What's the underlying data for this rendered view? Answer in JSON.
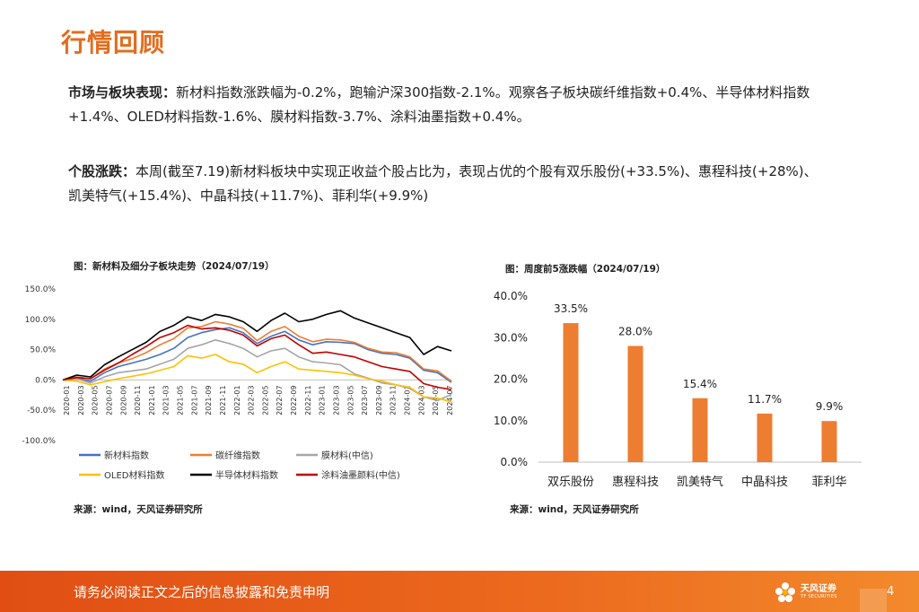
{
  "page_title": "行情回顾",
  "paragraph1": {
    "label": "市场与板块表现：",
    "line1": "新材料指数涨跌幅为-0.2%，跑输沪深300指数-2.1%。观察各子板块碳纤维指数+0.4%、半导体材料指数",
    "line2": "+1.4%、OLED材料指数-1.6%、膜材料指数-3.7%、涂料油墨指数+0.4%。"
  },
  "paragraph2": {
    "label": "个股涨跌：",
    "line1": "本周(截至7.19)新材料板块中实现正收益个股占比为，表现占优的个股有双乐股份(+33.5%)、惠程科技(+28%)、",
    "line2": "凯美特气(+15.4%)、中晶科技(+11.7%)、菲利华(+9.9%)"
  },
  "left_chart": {
    "title": "图：新材料及细分子板块走势（2024/07/19）",
    "source": "来源：wind，天风证券研究所"
  },
  "right_chart": {
    "title": "图：周度前5涨跌幅（2024/07/19）",
    "source": "来源：wind，天风证券研究所"
  },
  "chart_data": [
    {
      "type": "line",
      "y_tick_labels": [
        "150.0%",
        "100.0%",
        "50.0%",
        "0.0%",
        "-50.0%",
        "-100.0%"
      ],
      "ylim": [
        -100,
        150
      ],
      "x_tick_labels": [
        "2020-01",
        "2020-03",
        "2020-05",
        "2020-07",
        "2020-09",
        "2020-11",
        "2021-01",
        "2021-03",
        "2021-05",
        "2021-07",
        "2021-09",
        "2021-11",
        "2022-01",
        "2022-03",
        "2022-05",
        "2022-07",
        "2022-09",
        "2022-11",
        "2023-01",
        "2023-03",
        "2023-05",
        "2023-07",
        "2023-09",
        "2023-11",
        "2024-01",
        "2024-03",
        "2024-05",
        "2024-07"
      ],
      "legend_position": "bottom",
      "series": [
        {
          "name": "新材料指数",
          "color": "#4472C4",
          "values": [
            0,
            3,
            -2,
            12,
            22,
            28,
            34,
            42,
            52,
            70,
            78,
            83,
            86,
            78,
            60,
            72,
            80,
            66,
            58,
            63,
            62,
            60,
            50,
            44,
            42,
            36,
            16,
            12,
            -4
          ]
        },
        {
          "name": "碳纤维指数",
          "color": "#ED7D31",
          "values": [
            0,
            5,
            2,
            18,
            28,
            35,
            45,
            58,
            68,
            86,
            88,
            96,
            92,
            85,
            65,
            80,
            88,
            72,
            63,
            67,
            66,
            62,
            52,
            46,
            45,
            38,
            18,
            15,
            -2
          ]
        },
        {
          "name": "膜材料(中信)",
          "color": "#A5A5A5",
          "values": [
            0,
            2,
            -5,
            5,
            12,
            15,
            18,
            26,
            34,
            52,
            58,
            66,
            60,
            52,
            38,
            48,
            52,
            38,
            30,
            28,
            25,
            10,
            3,
            -5,
            -8,
            -14,
            -28,
            -34,
            -24
          ]
        },
        {
          "name": "OLED材料指数",
          "color": "#FFC000",
          "values": [
            0,
            -2,
            -8,
            -3,
            2,
            6,
            10,
            16,
            22,
            40,
            36,
            42,
            30,
            26,
            12,
            22,
            30,
            18,
            16,
            14,
            12,
            8,
            2,
            -2,
            -8,
            -12,
            -28,
            -30,
            -36
          ]
        },
        {
          "name": "半导体材料指数",
          "color": "#000000",
          "values": [
            0,
            8,
            5,
            25,
            38,
            50,
            62,
            80,
            90,
            104,
            98,
            108,
            104,
            96,
            80,
            98,
            110,
            96,
            100,
            108,
            114,
            102,
            94,
            86,
            78,
            70,
            42,
            55,
            48
          ]
        },
        {
          "name": "涂料油墨颜料(中信)",
          "color": "#C00000",
          "values": [
            0,
            4,
            2,
            16,
            28,
            42,
            55,
            70,
            78,
            90,
            84,
            86,
            82,
            74,
            56,
            68,
            74,
            58,
            44,
            46,
            42,
            38,
            30,
            22,
            18,
            14,
            -6,
            -12,
            -16
          ]
        }
      ]
    },
    {
      "type": "bar",
      "categories": [
        "双乐股份",
        "惠程科技",
        "凯美特气",
        "中晶科技",
        "菲利华"
      ],
      "values": [
        33.5,
        28.0,
        15.4,
        11.7,
        9.9
      ],
      "value_labels": [
        "33.5%",
        "28.0%",
        "15.4%",
        "11.7%",
        "9.9%"
      ],
      "y_tick_labels": [
        "40.0%",
        "30.0%",
        "20.0%",
        "10.0%",
        "0.0%"
      ],
      "ylim": [
        0,
        40
      ],
      "bar_color": "#ED7D31"
    }
  ],
  "footer": {
    "disclaimer": "请务必阅读正文之后的信息披露和免责申明",
    "logo_cn": "天风证券",
    "logo_en": "TF SECURITIES",
    "page_number": "4"
  }
}
